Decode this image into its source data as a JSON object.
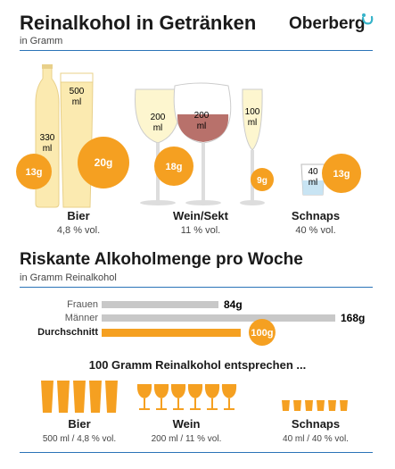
{
  "header": {
    "title": "Reinalkohol in Getränken",
    "subtitle": "in Gramm",
    "logo": "Oberberg"
  },
  "colors": {
    "accent": "#f5a021",
    "rule": "#2b74b8",
    "grey_bar": "#c8c8c8",
    "beer": "#fbeab0",
    "wine_white": "#fdf6cf",
    "wine_red": "#b8716b"
  },
  "drinks": {
    "beer": {
      "name": "Bier",
      "strength": "4,8 % vol.",
      "small": {
        "volume": "330",
        "unit": "ml",
        "grams": "13g"
      },
      "large": {
        "volume": "500",
        "unit": "ml",
        "grams": "20g"
      }
    },
    "wine": {
      "name": "Wein/Sekt",
      "strength": "11 % vol.",
      "white": {
        "volume": "200",
        "unit": "ml",
        "grams": "18g"
      },
      "red": {
        "volume": "200",
        "unit": "ml"
      },
      "sekt": {
        "volume": "100",
        "unit": "ml",
        "grams": "9g"
      }
    },
    "schnaps": {
      "name": "Schnaps",
      "strength": "40 % vol.",
      "glass": {
        "volume": "40",
        "unit": "ml",
        "grams": "13g"
      }
    }
  },
  "weekly": {
    "title": "Riskante Alkoholmenge pro Woche",
    "subtitle": "in Gramm Reinalkohol",
    "bars": [
      {
        "label": "Frauen",
        "value": 84,
        "value_label": "84g"
      },
      {
        "label": "Männer",
        "value": 168,
        "value_label": "168g"
      },
      {
        "label": "Durchschnitt",
        "value": 100,
        "value_label": "100g"
      }
    ]
  },
  "equivalents": {
    "title": "100 Gramm Reinalkohol entsprechen ...",
    "groups": [
      {
        "name": "Bier",
        "detail": "500 ml / 4,8 % vol.",
        "count": 5,
        "icon": "beer-glass-icon"
      },
      {
        "name": "Wein",
        "detail": "200 ml / 11 % vol.",
        "count": 6,
        "icon": "wine-glass-icon"
      },
      {
        "name": "Schnaps",
        "detail": "40 ml / 40 % vol.",
        "count": 6,
        "icon": "shot-glass-icon"
      }
    ]
  },
  "chart_data": {
    "type": "bar",
    "orientation": "horizontal",
    "title": "Riskante Alkoholmenge pro Woche",
    "subtitle": "in Gramm Reinalkohol",
    "categories": [
      "Frauen",
      "Männer",
      "Durchschnitt"
    ],
    "values": [
      84,
      168,
      100
    ],
    "xlim": [
      0,
      168
    ]
  }
}
